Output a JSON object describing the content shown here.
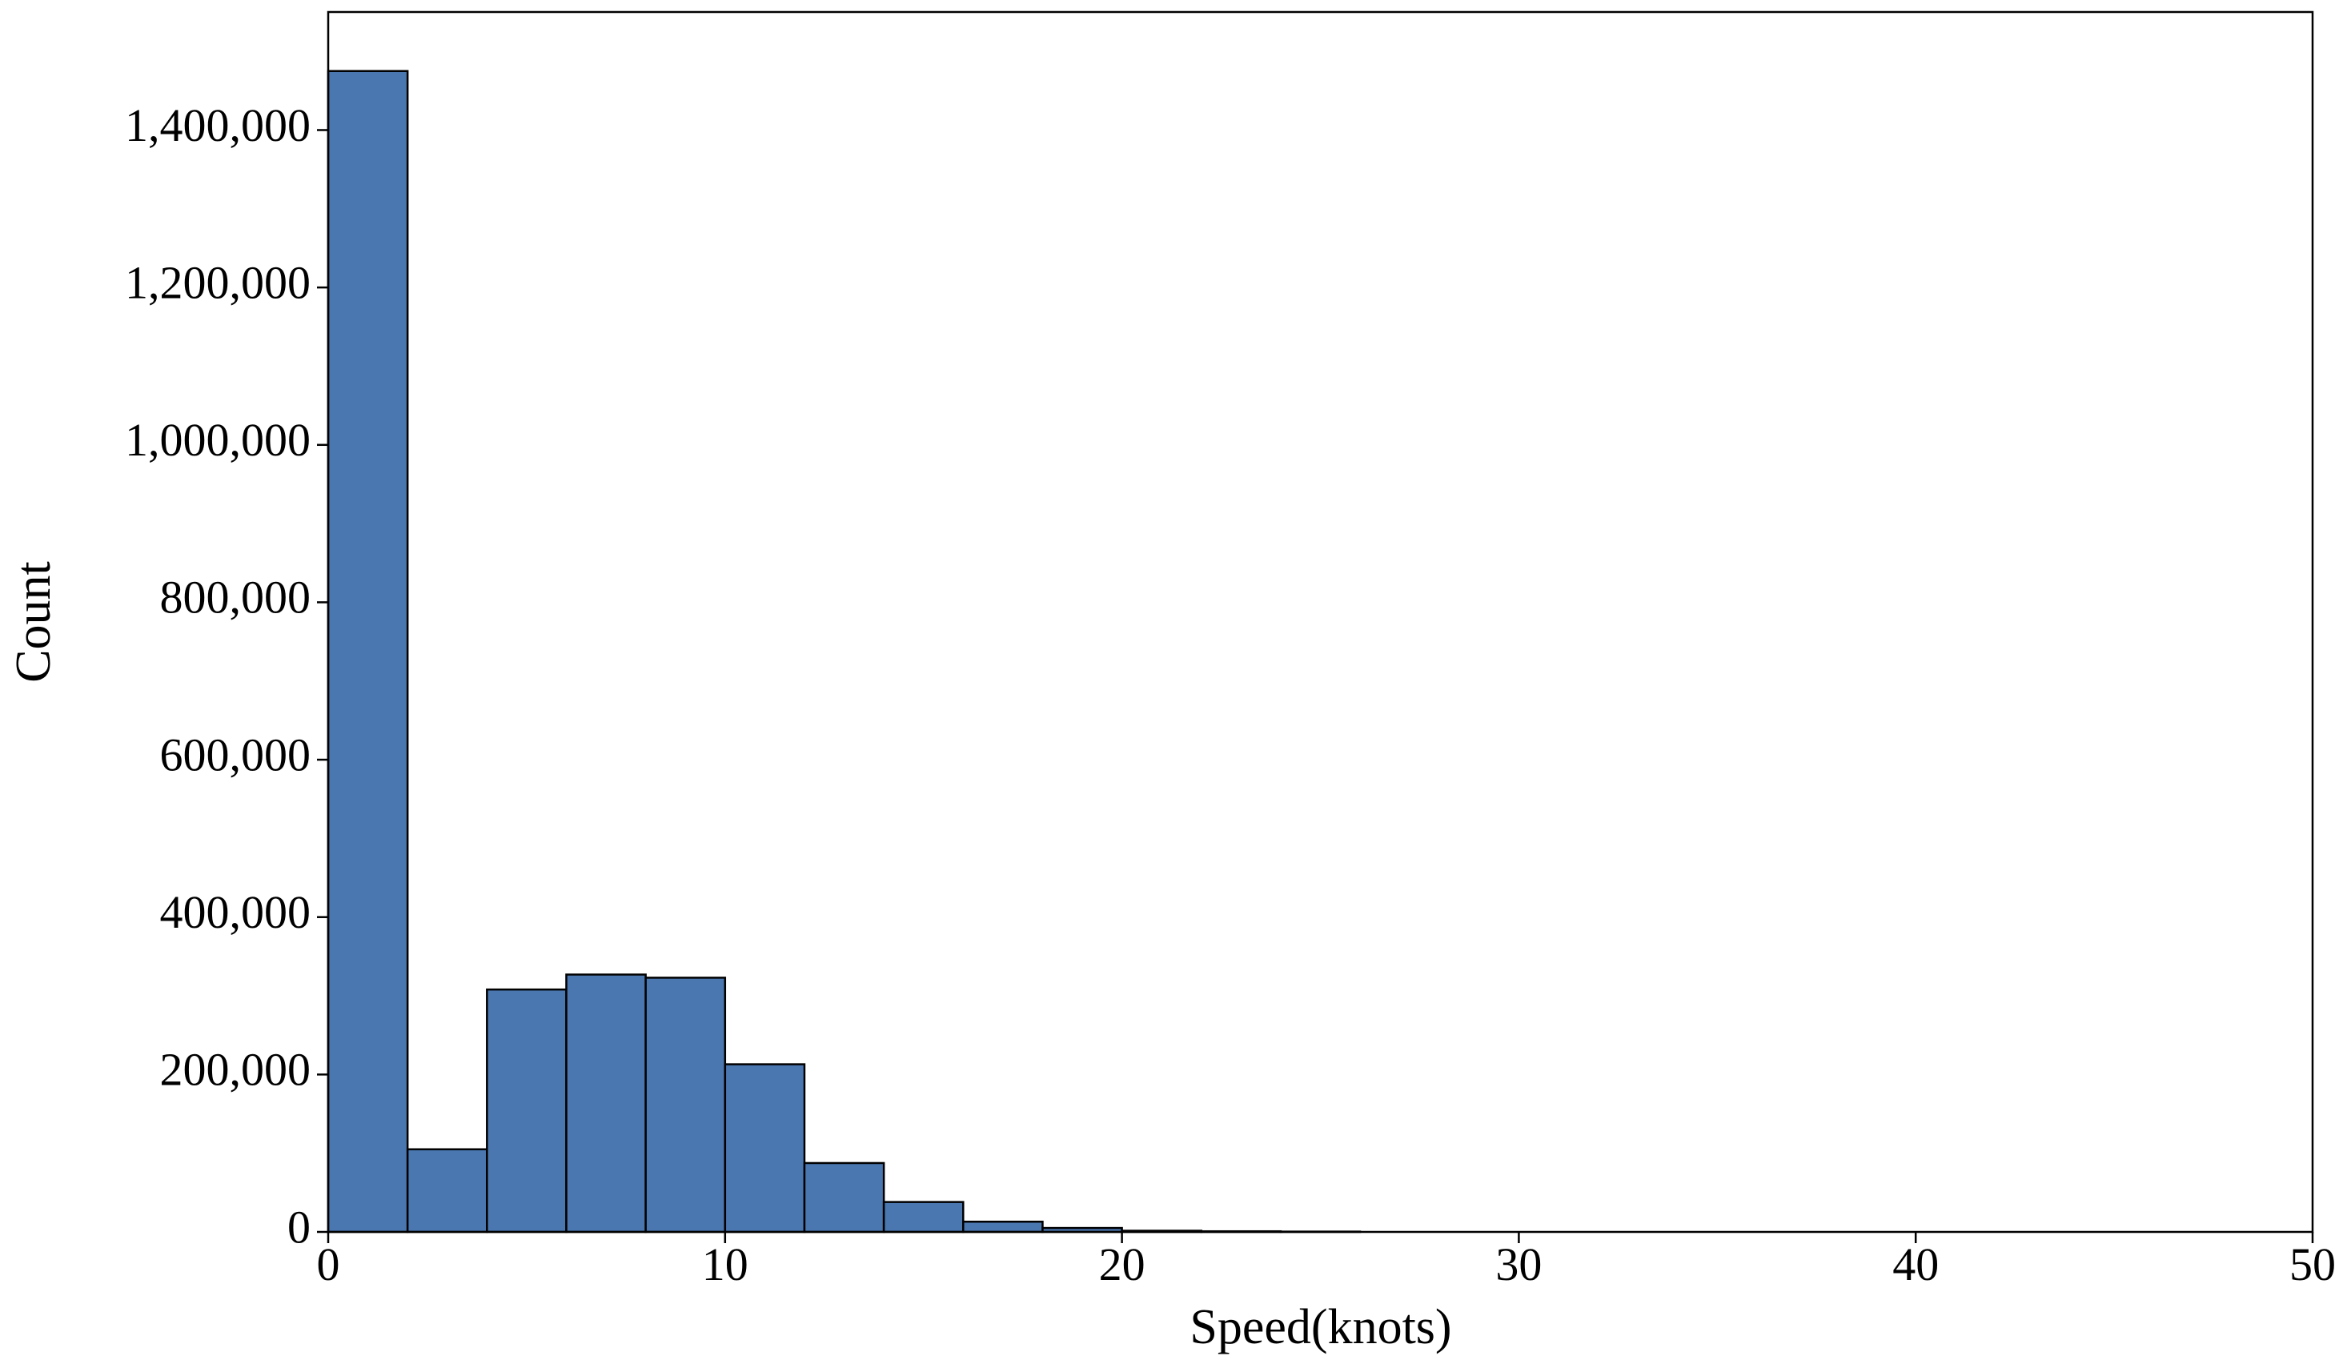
{
  "chart_data": {
    "type": "histogram",
    "x_label": "Speed(knots)",
    "y_label": "Count",
    "bins": [
      0,
      2,
      4,
      6,
      8,
      10,
      12,
      14,
      16,
      18,
      20,
      22,
      24,
      26
    ],
    "values": [
      1475000,
      105000,
      308000,
      327000,
      323000,
      213000,
      87500,
      38000,
      13000,
      5000,
      1500,
      800,
      400
    ],
    "color": "#4a77b0",
    "edgecolor": "#000000",
    "xlim": [
      0,
      50
    ],
    "xticks": [
      0,
      10,
      20,
      30,
      40,
      50
    ],
    "ylim": [
      0,
      1550000
    ],
    "yticks": [
      0,
      {
        "value": 200000,
        "label": "200,000"
      },
      {
        "value": 400000,
        "label": "400,000"
      },
      {
        "value": 600000,
        "label": "600,000"
      },
      {
        "value": 800000,
        "label": "800,000"
      },
      {
        "value": 1000000,
        "label": "1,000,000"
      },
      {
        "value": 1200000,
        "label": "1,200,000"
      },
      {
        "value": 1400000,
        "label": "1,400,000"
      }
    ],
    "grid": false
  }
}
